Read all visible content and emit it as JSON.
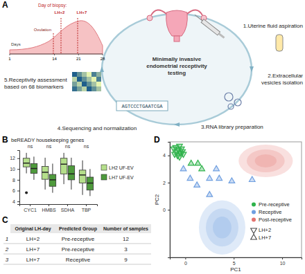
{
  "panels": [
    "A",
    "B",
    "C",
    "D"
  ],
  "diagram": {
    "center": [
      "Minimally invasive",
      "endometrial receptivity",
      "testing"
    ],
    "steps": [
      [
        "1.Uterine fluid aspiration"
      ],
      [
        "2.Extracellular",
        "vesicles isolation"
      ],
      [
        "3.RNA library preparation"
      ],
      [
        "4.Sequencing and normalization"
      ],
      [
        "5.Receptivity assessment",
        "based on 68 biomarkers"
      ]
    ],
    "sequence": "AGTCCCTGAATCGA",
    "cycle": {
      "heading": "Day of biopsy:",
      "ovulation": "Ovulation",
      "biopsy_days": [
        "LH+2",
        "LH+7"
      ],
      "x_label": "Days",
      "ticks": [
        1,
        14,
        21,
        28
      ]
    }
  },
  "table": {
    "columns": [
      "Original LH-day",
      "Predicted Group",
      "Number of samples"
    ],
    "rows": [
      [
        1,
        "LH+2",
        "Pre-receptive",
        12
      ],
      [
        2,
        "LH+7",
        "Pre-receptive",
        3
      ],
      [
        3,
        "LH+7",
        "Receptive",
        9
      ]
    ]
  },
  "chart_data": [
    {
      "type": "box",
      "title": "beREADY housekeeping genes",
      "categories": [
        "CYC1",
        "HMBS",
        "SDHA",
        "TBP"
      ],
      "series": [
        {
          "name": "LH2 UF-EV",
          "color": "#b5df8b",
          "min": [
            9.2,
            6.2,
            7.2,
            5.2
          ],
          "q1": [
            10.4,
            8.1,
            9.1,
            7.4
          ],
          "median": [
            11.1,
            9.4,
            10.9,
            8.9
          ],
          "q3": [
            12.0,
            10.5,
            12.0,
            9.8
          ],
          "max": [
            13.0,
            12.1,
            13.0,
            11.6
          ],
          "outliers": [
            [
              5.6
            ],
            [],
            [],
            []
          ]
        },
        {
          "name": "LH7 UF-EV",
          "color": "#4e9a3c",
          "min": [
            8.0,
            5.6,
            6.2,
            5.0
          ],
          "q1": [
            9.2,
            6.8,
            8.0,
            6.1
          ],
          "median": [
            10.1,
            8.0,
            9.1,
            7.4
          ],
          "q3": [
            11.0,
            9.0,
            10.6,
            8.5
          ],
          "max": [
            12.3,
            11.0,
            12.1,
            10.0
          ],
          "outliers": [
            [],
            [],
            [],
            []
          ]
        }
      ],
      "annotations": [
        "ns",
        "ns",
        "ns",
        "ns"
      ],
      "ylim": [
        3.5,
        13.5
      ],
      "yticks": [
        4,
        6,
        8,
        10,
        12
      ],
      "grid": false,
      "legend": "right"
    },
    {
      "type": "scatter",
      "x_label": "PC1",
      "y_label": "PC2",
      "xlim": [
        -1.6,
        12
      ],
      "ylim": [
        -3.5,
        5
      ],
      "xticks": [
        0,
        5,
        10
      ],
      "yticks": [
        0,
        2,
        4
      ],
      "grid": false,
      "legend": "bottom-right",
      "series": [
        {
          "color": "#2eb24a",
          "marker": "triangle-down",
          "x": [
            -1.2,
            -1.0,
            -0.9,
            -0.7,
            -0.6,
            -0.5,
            -0.4,
            -1.1,
            -0.8,
            -0.3,
            -0.6,
            -0.2
          ],
          "values": [
            4.5,
            4.6,
            4.3,
            4.4,
            4.7,
            4.2,
            4.5,
            4.1,
            4.0,
            4.3,
            3.9,
            4.1
          ]
        },
        {
          "color": "#2eb24a",
          "marker": "triangle-up",
          "x": [
            0.6,
            1.3,
            1.7
          ],
          "values": [
            3.4,
            3.4,
            3.0
          ]
        },
        {
          "color": "#6f9fe0",
          "marker": "triangle-up",
          "x": [
            -0.2,
            0.5,
            1.2,
            2.5,
            3.2,
            2.5,
            3.5,
            4.8,
            6.9
          ],
          "values": [
            3.0,
            2.3,
            1.8,
            2.3,
            3.0,
            1.1,
            2.3,
            2.1,
            2.2
          ]
        }
      ],
      "color_legend": [
        {
          "name": "Pre-receptive",
          "color": "#2eb24a"
        },
        {
          "name": "Receptive",
          "color": "#6f9fe0"
        },
        {
          "name": "Post-receptive",
          "color": "#e3736f"
        }
      ],
      "shape_legend": [
        {
          "name": "LH+2",
          "marker": "triangle-down"
        },
        {
          "name": "LH+7",
          "marker": "triangle-up"
        }
      ],
      "density_regions": [
        {
          "color": "#6f9fe0",
          "center_x": 3.8,
          "center_y": -1.3,
          "radius_x": 2.4,
          "radius_y": 2.0
        },
        {
          "color": "#e3736f",
          "center_x": 8.3,
          "center_y": 3.6,
          "radius_x": 2.8,
          "radius_y": 1.2
        }
      ]
    }
  ]
}
